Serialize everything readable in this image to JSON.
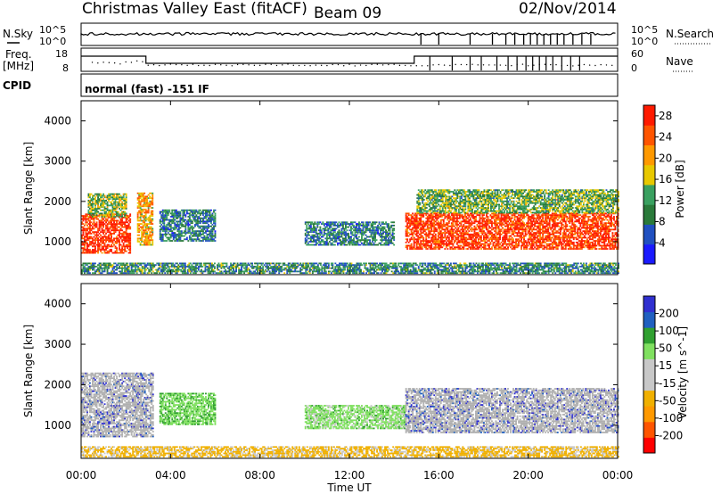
{
  "header": {
    "station": "Christmas Valley East (fitACF)",
    "beam": "Beam 09",
    "date": "02/Nov/2014"
  },
  "strip_labels": {
    "nsky": "N.Sky",
    "nsky_hi": "10^5",
    "nsky_lo": "10^0",
    "nsearch": "N.Search",
    "nsearch_hi": "10^5",
    "nsearch_lo": "10^0",
    "freq_line1": "Freq.",
    "freq_line2": "[MHz]",
    "freq_hi": "18",
    "freq_lo": "8",
    "nave": "Nave",
    "nave_hi": "60",
    "nave_lo": "0",
    "cpid": "CPID",
    "cpid_value": "normal (fast) -151 IF"
  },
  "colors": {
    "power_scale": [
      "#1a1aff",
      "#2050c0",
      "#2a7a3a",
      "#3aa060",
      "#e8c800",
      "#ff9900",
      "#ff5500",
      "#ff1a00"
    ],
    "velocity_scale": [
      "#ff0000",
      "#ff5500",
      "#ff9900",
      "#f0b000",
      "#c8c8c8",
      "#c8c8c8",
      "#80e060",
      "#30a030",
      "#2060c0",
      "#3030d0"
    ],
    "ground_scatter": "#b0b0b0"
  },
  "chart_data": [
    {
      "type": "heatmap",
      "title": "",
      "xlabel": "Time UT",
      "ylabel": "Slant Range [km]",
      "xlim": [
        "00:00",
        "24:00"
      ],
      "ylim": [
        180,
        4500
      ],
      "xticks": [
        "00:00",
        "04:00",
        "08:00",
        "12:00",
        "16:00",
        "20:00",
        "00:00"
      ],
      "yticks": [
        1000,
        2000,
        3000,
        4000
      ],
      "colorbar": {
        "label": "Power [dB]",
        "ticks": [
          4,
          8,
          12,
          16,
          20,
          24,
          28
        ],
        "range": [
          0,
          30
        ]
      },
      "regions": [
        {
          "t_start": 0.0,
          "t_end": 2.2,
          "r_low": 700,
          "r_high": 1700,
          "value": 28
        },
        {
          "t_start": 0.3,
          "t_end": 2.0,
          "r_low": 1600,
          "r_high": 2200,
          "value": 14
        },
        {
          "t_start": 2.5,
          "t_end": 3.2,
          "r_low": 900,
          "r_high": 2200,
          "value": 20
        },
        {
          "t_start": 3.5,
          "t_end": 6.0,
          "r_low": 1000,
          "r_high": 1800,
          "value": 9
        },
        {
          "t_start": 10.0,
          "t_end": 14.0,
          "r_low": 900,
          "r_high": 1500,
          "value": 9
        },
        {
          "t_start": 14.5,
          "t_end": 24.0,
          "r_low": 800,
          "r_high": 1700,
          "value": 27
        },
        {
          "t_start": 15.0,
          "t_end": 24.0,
          "r_low": 1700,
          "r_high": 2300,
          "value": 13
        },
        {
          "t_start": 0.0,
          "t_end": 24.0,
          "r_low": 200,
          "r_high": 450,
          "value": 10
        }
      ]
    },
    {
      "type": "heatmap",
      "title": "",
      "xlabel": "Time UT",
      "ylabel": "Slant Range [km]",
      "xlim": [
        "00:00",
        "24:00"
      ],
      "ylim": [
        180,
        4500
      ],
      "xticks": [
        "00:00",
        "04:00",
        "08:00",
        "12:00",
        "16:00",
        "20:00",
        "00:00"
      ],
      "yticks": [
        1000,
        2000,
        3000,
        4000
      ],
      "colorbar": {
        "label": "Velocity [m s^-1]",
        "ticks": [
          200,
          100,
          50,
          15,
          -15,
          -50,
          -100,
          -200
        ]
      },
      "regions": [
        {
          "t_start": 0.0,
          "t_end": 3.2,
          "r_low": 700,
          "r_high": 2300,
          "value": 0
        },
        {
          "t_start": 3.5,
          "t_end": 6.0,
          "r_low": 1000,
          "r_high": 1800,
          "value": 40
        },
        {
          "t_start": 10.0,
          "t_end": 14.5,
          "r_low": 900,
          "r_high": 1500,
          "value": 30
        },
        {
          "t_start": 14.5,
          "t_end": 24.0,
          "r_low": 800,
          "r_high": 1900,
          "value": 0
        },
        {
          "t_start": 0.0,
          "t_end": 24.0,
          "r_low": 200,
          "r_high": 450,
          "value": -60
        }
      ]
    }
  ]
}
